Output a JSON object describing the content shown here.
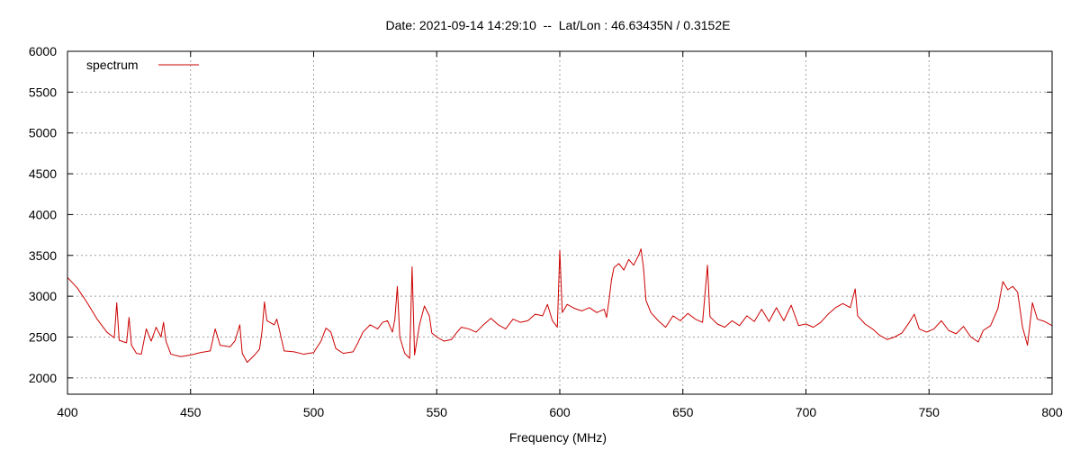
{
  "chart_data": {
    "type": "line",
    "title": "Date: 2021-09-14 14:29:10  --  Lat/Lon : 46.63435N / 0.3152E",
    "xlabel": "Frequency (MHz)",
    "ylabel": "",
    "xlim": [
      400,
      800
    ],
    "ylim": [
      1800,
      6000
    ],
    "x_ticks": [
      400,
      450,
      500,
      550,
      600,
      650,
      700,
      750,
      800
    ],
    "y_ticks": [
      2000,
      2500,
      3000,
      3500,
      4000,
      4500,
      5000,
      5500,
      6000
    ],
    "grid": true,
    "legend_position": "top-left",
    "series": [
      {
        "name": "spectrum",
        "color": "#cc0000",
        "points": [
          [
            400,
            3230
          ],
          [
            404,
            3100
          ],
          [
            408,
            2920
          ],
          [
            412,
            2720
          ],
          [
            416,
            2560
          ],
          [
            419,
            2490
          ],
          [
            420,
            2920
          ],
          [
            421,
            2460
          ],
          [
            424,
            2430
          ],
          [
            425,
            2740
          ],
          [
            426,
            2400
          ],
          [
            428,
            2300
          ],
          [
            430,
            2290
          ],
          [
            432,
            2600
          ],
          [
            434,
            2450
          ],
          [
            436,
            2620
          ],
          [
            438,
            2500
          ],
          [
            439,
            2680
          ],
          [
            440,
            2450
          ],
          [
            442,
            2290
          ],
          [
            446,
            2260
          ],
          [
            450,
            2280
          ],
          [
            454,
            2310
          ],
          [
            458,
            2330
          ],
          [
            460,
            2600
          ],
          [
            462,
            2400
          ],
          [
            466,
            2380
          ],
          [
            468,
            2450
          ],
          [
            470,
            2650
          ],
          [
            471,
            2300
          ],
          [
            473,
            2190
          ],
          [
            476,
            2280
          ],
          [
            478,
            2350
          ],
          [
            479,
            2560
          ],
          [
            480,
            2930
          ],
          [
            481,
            2700
          ],
          [
            484,
            2650
          ],
          [
            485,
            2720
          ],
          [
            486,
            2600
          ],
          [
            488,
            2330
          ],
          [
            492,
            2320
          ],
          [
            496,
            2290
          ],
          [
            500,
            2310
          ],
          [
            503,
            2450
          ],
          [
            505,
            2610
          ],
          [
            507,
            2560
          ],
          [
            509,
            2360
          ],
          [
            512,
            2300
          ],
          [
            516,
            2320
          ],
          [
            518,
            2430
          ],
          [
            520,
            2560
          ],
          [
            523,
            2650
          ],
          [
            526,
            2600
          ],
          [
            528,
            2680
          ],
          [
            530,
            2700
          ],
          [
            532,
            2560
          ],
          [
            533,
            2720
          ],
          [
            534,
            3120
          ],
          [
            535,
            2500
          ],
          [
            537,
            2300
          ],
          [
            539,
            2240
          ],
          [
            540,
            3360
          ],
          [
            541,
            2280
          ],
          [
            543,
            2650
          ],
          [
            545,
            2880
          ],
          [
            547,
            2760
          ],
          [
            548,
            2550
          ],
          [
            550,
            2500
          ],
          [
            553,
            2450
          ],
          [
            556,
            2470
          ],
          [
            558,
            2550
          ],
          [
            560,
            2620
          ],
          [
            563,
            2600
          ],
          [
            566,
            2560
          ],
          [
            569,
            2650
          ],
          [
            572,
            2730
          ],
          [
            575,
            2650
          ],
          [
            578,
            2600
          ],
          [
            581,
            2720
          ],
          [
            584,
            2680
          ],
          [
            587,
            2700
          ],
          [
            590,
            2780
          ],
          [
            593,
            2760
          ],
          [
            595,
            2900
          ],
          [
            597,
            2700
          ],
          [
            599,
            2620
          ],
          [
            600,
            3560
          ],
          [
            601,
            2800
          ],
          [
            603,
            2900
          ],
          [
            606,
            2850
          ],
          [
            609,
            2820
          ],
          [
            612,
            2860
          ],
          [
            615,
            2800
          ],
          [
            618,
            2840
          ],
          [
            619,
            2740
          ],
          [
            620,
            2950
          ],
          [
            621,
            3200
          ],
          [
            622,
            3350
          ],
          [
            624,
            3400
          ],
          [
            626,
            3320
          ],
          [
            628,
            3450
          ],
          [
            630,
            3380
          ],
          [
            632,
            3500
          ],
          [
            633,
            3580
          ],
          [
            634,
            3350
          ],
          [
            635,
            2950
          ],
          [
            637,
            2800
          ],
          [
            640,
            2700
          ],
          [
            643,
            2620
          ],
          [
            646,
            2760
          ],
          [
            649,
            2700
          ],
          [
            652,
            2790
          ],
          [
            655,
            2720
          ],
          [
            658,
            2680
          ],
          [
            660,
            3380
          ],
          [
            661,
            2750
          ],
          [
            664,
            2660
          ],
          [
            667,
            2620
          ],
          [
            670,
            2700
          ],
          [
            673,
            2640
          ],
          [
            676,
            2760
          ],
          [
            679,
            2690
          ],
          [
            682,
            2840
          ],
          [
            685,
            2690
          ],
          [
            688,
            2860
          ],
          [
            691,
            2700
          ],
          [
            694,
            2890
          ],
          [
            697,
            2640
          ],
          [
            700,
            2660
          ],
          [
            703,
            2620
          ],
          [
            706,
            2680
          ],
          [
            709,
            2780
          ],
          [
            712,
            2860
          ],
          [
            715,
            2910
          ],
          [
            718,
            2860
          ],
          [
            720,
            3090
          ],
          [
            721,
            2760
          ],
          [
            724,
            2660
          ],
          [
            727,
            2600
          ],
          [
            730,
            2520
          ],
          [
            733,
            2470
          ],
          [
            736,
            2500
          ],
          [
            739,
            2550
          ],
          [
            742,
            2680
          ],
          [
            744,
            2780
          ],
          [
            746,
            2600
          ],
          [
            749,
            2560
          ],
          [
            752,
            2600
          ],
          [
            755,
            2700
          ],
          [
            758,
            2580
          ],
          [
            761,
            2540
          ],
          [
            764,
            2630
          ],
          [
            767,
            2500
          ],
          [
            770,
            2440
          ],
          [
            772,
            2580
          ],
          [
            775,
            2640
          ],
          [
            778,
            2850
          ],
          [
            780,
            3180
          ],
          [
            782,
            3080
          ],
          [
            784,
            3120
          ],
          [
            786,
            3050
          ],
          [
            788,
            2620
          ],
          [
            790,
            2400
          ],
          [
            792,
            2920
          ],
          [
            794,
            2720
          ],
          [
            797,
            2690
          ],
          [
            800,
            2640
          ]
        ]
      }
    ]
  }
}
